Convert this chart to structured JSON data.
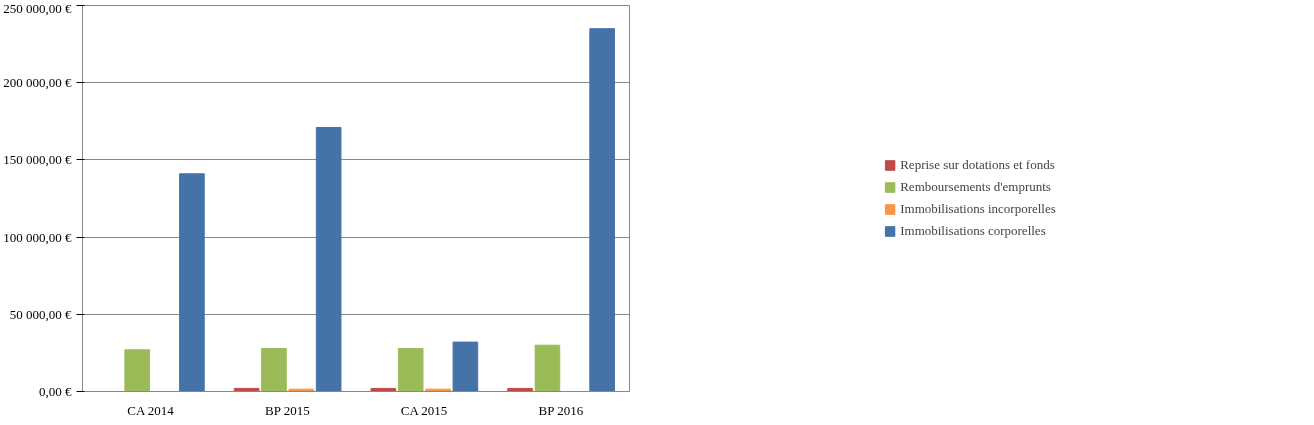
{
  "chart_data": {
    "type": "bar",
    "categories": [
      "CA 2014",
      "BP 2015",
      "CA 2015",
      "BP 2016"
    ],
    "series": [
      {
        "name": "Reprise sur dotations et fonds",
        "color": "#be4b48",
        "values": [
          0,
          2000,
          2000,
          2000
        ]
      },
      {
        "name": "Remboursements d'emprunts",
        "color": "#9bbb59",
        "values": [
          27000,
          27800,
          27800,
          30000
        ]
      },
      {
        "name": "Immobilisations incorporelles",
        "color": "#f79646",
        "values": [
          0,
          1500,
          1500,
          0
        ]
      },
      {
        "name": "Immobilisations corporelles",
        "color": "#4572a7",
        "values": [
          141000,
          171000,
          32000,
          235000
        ]
      }
    ],
    "ylim": [
      0,
      250000
    ],
    "yticks": [
      {
        "value": 0,
        "label": "0,00 €"
      },
      {
        "value": 50000,
        "label": "50 000,00 €"
      },
      {
        "value": 100000,
        "label": "100 000,00 €"
      },
      {
        "value": 150000,
        "label": "150 000,00 €"
      },
      {
        "value": 200000,
        "label": "200 000,00 €"
      },
      {
        "value": 250000,
        "label": "250 000,00 €"
      }
    ],
    "grid": "y",
    "legend": "right"
  }
}
